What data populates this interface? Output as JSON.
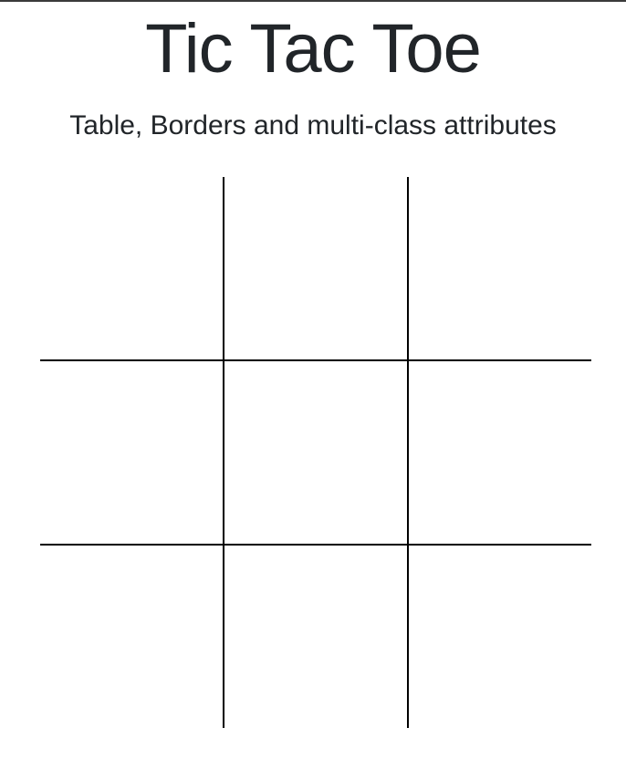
{
  "header": {
    "title": "Tic Tac Toe",
    "subtitle": "Table, Borders and multi-class attributes"
  },
  "board": {
    "rows": [
      [
        "",
        "",
        ""
      ],
      [
        "",
        "",
        ""
      ],
      [
        "",
        "",
        ""
      ]
    ],
    "line_color": "#000000"
  },
  "colors": {
    "text": "#212529",
    "background": "#ffffff"
  }
}
